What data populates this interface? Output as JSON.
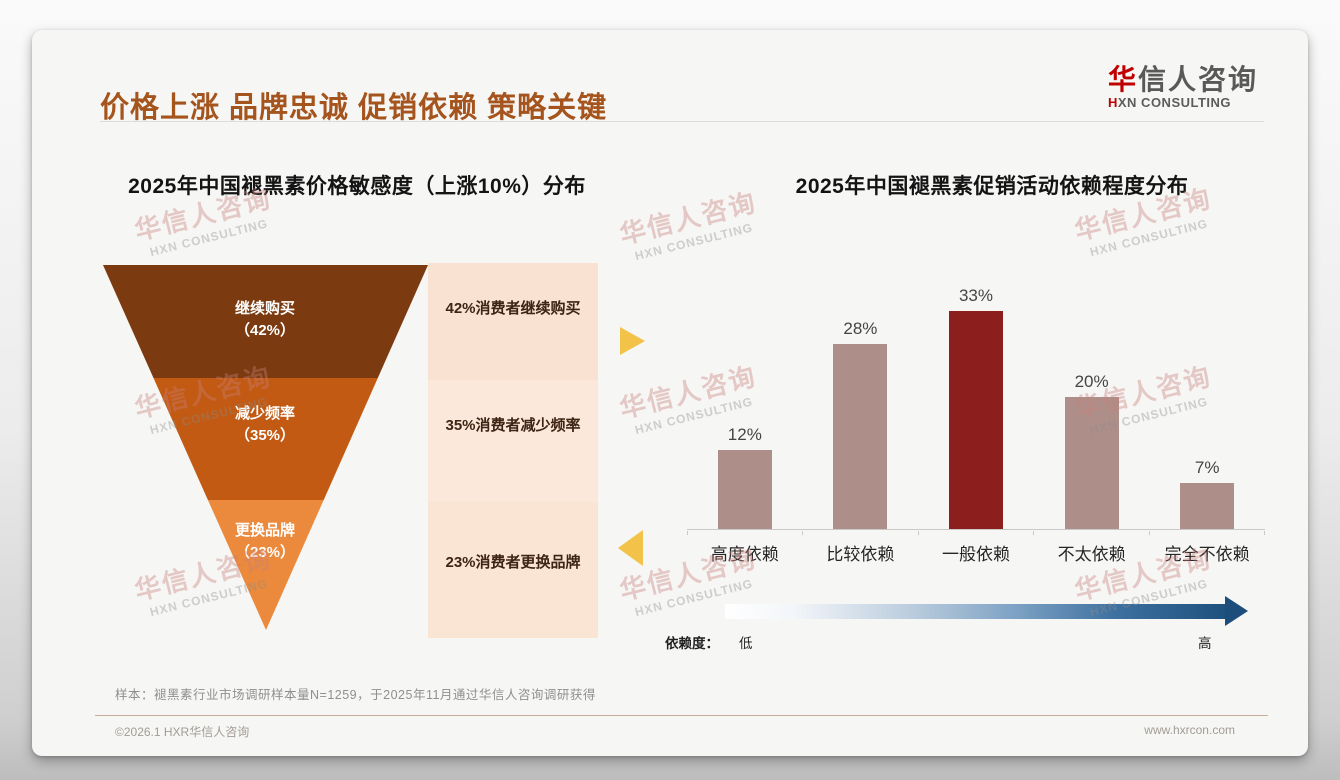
{
  "header": {
    "title": "价格上涨 品牌忠诚 促销依赖 策略关键",
    "logo": {
      "cn_first": "华",
      "cn_rest": "信人咨询",
      "en_first": "H",
      "en_rest": "XN CONSULTING"
    }
  },
  "left_chart": {
    "title": "2025年中国褪黑素价格敏感度（上涨10%）分布",
    "segments": [
      {
        "label": "继续购买",
        "value_text": "（42%）",
        "value": 42,
        "color": "#7b3a10",
        "row_color": "#f9e2d2",
        "annotation": "42%消费者继续购买"
      },
      {
        "label": "减少频率",
        "value_text": "（35%）",
        "value": 35,
        "color": "#c25a13",
        "row_color": "#fbe8da",
        "annotation": "35%消费者减少频率"
      },
      {
        "label": "更换品牌",
        "value_text": "（23%）",
        "value": 23,
        "color": "#eb8a3c",
        "row_color": "#fae4d4",
        "annotation": "23%消费者更换品牌"
      }
    ]
  },
  "right_chart": {
    "title": "2025年中国褪黑素促销活动依赖程度分布",
    "bars": [
      {
        "label": "高度依赖",
        "value": 12,
        "value_text": "12%",
        "color": "#ae8e89",
        "highlight": false
      },
      {
        "label": "比较依赖",
        "value": 28,
        "value_text": "28%",
        "color": "#ae8e89",
        "highlight": false
      },
      {
        "label": "一般依赖",
        "value": 33,
        "value_text": "33%",
        "color": "#8c1e1e",
        "highlight": true
      },
      {
        "label": "不太依赖",
        "value": 20,
        "value_text": "20%",
        "color": "#ae8e89",
        "highlight": false
      },
      {
        "label": "完全不依赖",
        "value": 7,
        "value_text": "7%",
        "color": "#ae8e89",
        "highlight": false
      }
    ],
    "legend": {
      "prefix": "依赖度：",
      "low": "低",
      "high": "高"
    }
  },
  "accents": {
    "gold_arrow": "#f2c249",
    "gradient_start": "#ffffff",
    "gradient_end": "#1f517e",
    "title_brown": "#a4541c",
    "logo_red": "#c00000"
  },
  "footnote": "样本：褪黑素行业市场调研样本量N=1259，于2025年11月通过华信人咨询调研获得",
  "footer": {
    "left": "©2026.1 HXR华信人咨询",
    "right": "www.hxrcon.com"
  },
  "watermark": {
    "line1": "华信人咨询",
    "line2": "HXN CONSULTING"
  },
  "chart_data": [
    {
      "type": "funnel",
      "title": "2025年中国褪黑素价格敏感度（上涨10%）分布",
      "categories": [
        "继续购买",
        "减少频率",
        "更换品牌"
      ],
      "values": [
        42,
        35,
        23
      ],
      "unit": "%",
      "annotations": [
        "42%消费者继续购买",
        "35%消费者减少频率",
        "23%消费者更换品牌"
      ],
      "colors": [
        "#7b3a10",
        "#c25a13",
        "#eb8a3c"
      ]
    },
    {
      "type": "bar",
      "title": "2025年中国褪黑素促销活动依赖程度分布",
      "categories": [
        "高度依赖",
        "比较依赖",
        "一般依赖",
        "不太依赖",
        "完全不依赖"
      ],
      "values": [
        12,
        28,
        33,
        20,
        7
      ],
      "unit": "%",
      "ylim": [
        0,
        35
      ],
      "grid": false,
      "legend_position": "none",
      "highlight_index": 2,
      "bar_color": "#ae8e89",
      "highlight_color": "#8c1e1e",
      "x_axis_note": "依赖度：低 → 高"
    }
  ]
}
